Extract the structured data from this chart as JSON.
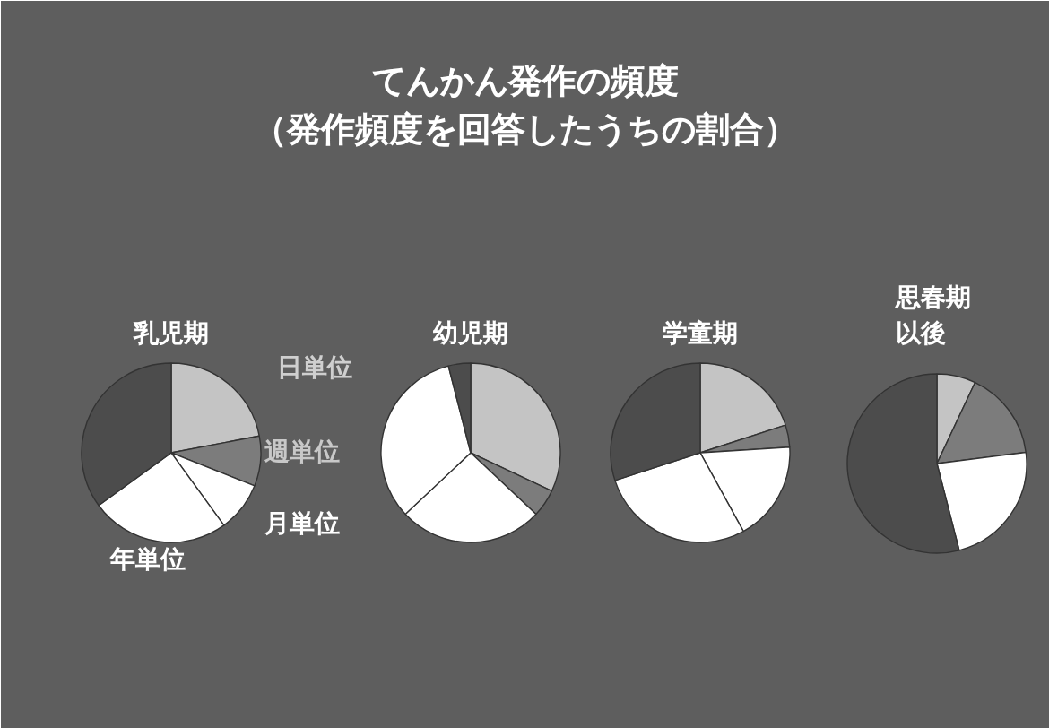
{
  "chart_data": [
    {
      "type": "pie",
      "title": "乳児期",
      "annotations": [
        "てんかん発作の頻度",
        "（発作頻度を回答したうちの割合）"
      ],
      "categories": [
        "日単位",
        "週単位",
        "月単位",
        "年単位",
        null
      ],
      "values": [
        22,
        9,
        9,
        25,
        35
      ],
      "colors": [
        "#c4c4c4",
        "#7c7c7c",
        "#ffffff",
        "#ffffff",
        "#4c4c4c"
      ]
    },
    {
      "type": "pie",
      "title": "幼児期",
      "categories": [
        null,
        null,
        null,
        null,
        null
      ],
      "values": [
        32,
        5,
        26,
        33,
        4
      ],
      "colors": [
        "#c4c4c4",
        "#7c7c7c",
        "#ffffff",
        "#ffffff",
        "#4c4c4c"
      ]
    },
    {
      "type": "pie",
      "title": "学童期",
      "categories": [
        null,
        null,
        null,
        null,
        null
      ],
      "values": [
        20,
        4,
        18,
        28,
        30
      ],
      "colors": [
        "#c4c4c4",
        "#7c7c7c",
        "#ffffff",
        "#ffffff",
        "#4c4c4c"
      ]
    },
    {
      "type": "pie",
      "title": "思春期以後",
      "categories": [
        null,
        null,
        null,
        null,
        null
      ],
      "values": [
        7,
        16,
        23,
        0,
        54
      ],
      "colors": [
        "#c4c4c4",
        "#7c7c7c",
        "#ffffff",
        "#ffffff",
        "#4c4c4c"
      ]
    }
  ]
}
